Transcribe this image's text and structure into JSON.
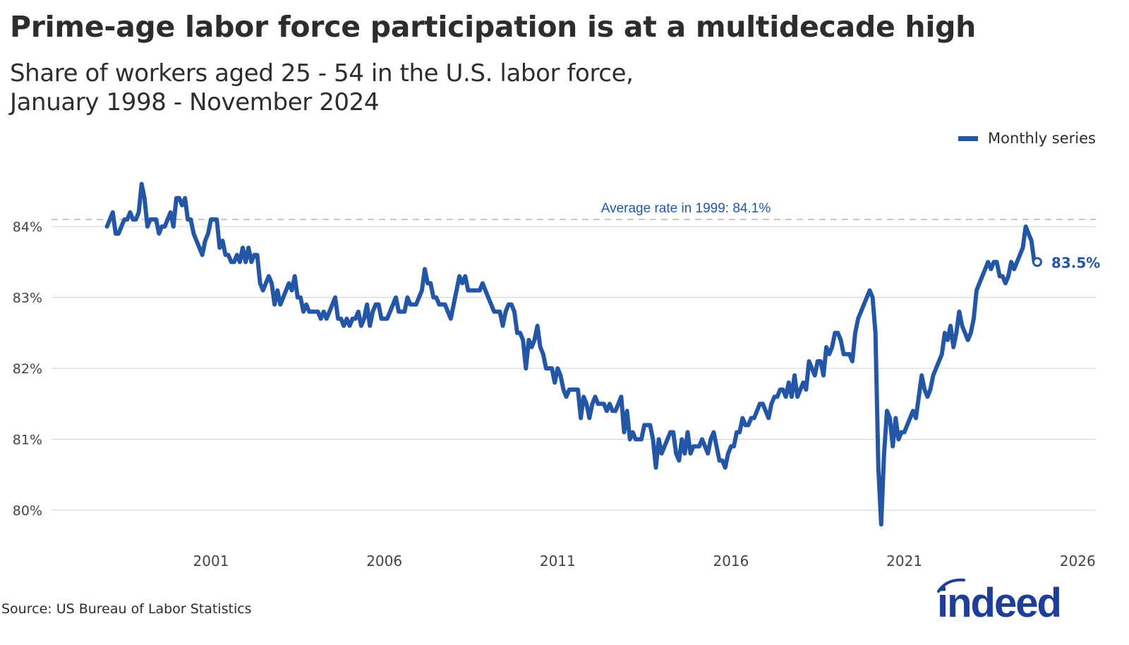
{
  "title": "Prime-age labor force participation is at a multidecade high",
  "subtitle_line1": "Share of workers aged 25 - 54 in the U.S. labor force,",
  "subtitle_line2": "January 1998 - November 2024",
  "legend_label": "Monthly series",
  "source": "Source: US Bureau of Labor Statistics",
  "logo_text": "indeed",
  "colors": {
    "series": "#2356a6",
    "grid": "#d9d9d9",
    "reference": "#c8c8c8",
    "text": "#2d2d2d"
  },
  "chart_data": {
    "type": "line",
    "title": "Prime-age labor force participation is at a multidecade high",
    "xlabel": "",
    "ylabel": "",
    "x_start": "1998-01",
    "x_end": "2024-11",
    "xlim": [
      1997.3,
      2026.5
    ],
    "ylim": [
      79.55,
      85.0
    ],
    "x_ticks": [
      2001,
      2006,
      2011,
      2016,
      2021,
      2026
    ],
    "x_tick_labels": [
      "2001",
      "2006",
      "2011",
      "2016",
      "2021",
      "2026"
    ],
    "y_ticks": [
      80,
      81,
      82,
      83,
      84
    ],
    "y_tick_labels": [
      "80%",
      "81%",
      "82%",
      "83%",
      "84%"
    ],
    "grid": true,
    "legend": "top-right",
    "reference_line": {
      "value": 84.1,
      "label": "Average rate in 1999: 84.1%"
    },
    "end_label": "83.5%",
    "series": [
      {
        "name": "Monthly series",
        "frequency": "monthly",
        "values": [
          84.0,
          84.1,
          84.2,
          83.9,
          83.9,
          84.0,
          84.1,
          84.1,
          84.2,
          84.1,
          84.1,
          84.2,
          84.6,
          84.4,
          84.0,
          84.1,
          84.1,
          84.1,
          83.9,
          84.0,
          84.0,
          84.1,
          84.2,
          84.0,
          84.4,
          84.4,
          84.3,
          84.4,
          84.1,
          84.1,
          83.9,
          83.8,
          83.7,
          83.6,
          83.8,
          83.9,
          84.1,
          84.1,
          84.1,
          83.7,
          83.8,
          83.6,
          83.6,
          83.5,
          83.5,
          83.6,
          83.5,
          83.7,
          83.5,
          83.7,
          83.5,
          83.6,
          83.6,
          83.2,
          83.1,
          83.2,
          83.3,
          83.2,
          82.9,
          83.1,
          82.9,
          83.0,
          83.1,
          83.2,
          83.1,
          83.3,
          83.0,
          83.0,
          82.8,
          82.9,
          82.8,
          82.8,
          82.8,
          82.8,
          82.7,
          82.8,
          82.7,
          82.8,
          82.9,
          83.0,
          82.7,
          82.7,
          82.6,
          82.7,
          82.6,
          82.7,
          82.7,
          82.8,
          82.6,
          82.7,
          82.9,
          82.6,
          82.8,
          82.9,
          82.9,
          82.7,
          82.7,
          82.7,
          82.8,
          82.9,
          83.0,
          82.8,
          82.8,
          82.8,
          83.0,
          82.9,
          82.9,
          82.9,
          83.0,
          83.1,
          83.4,
          83.2,
          83.2,
          83.0,
          83.0,
          82.9,
          82.9,
          82.9,
          82.8,
          82.7,
          82.9,
          83.1,
          83.3,
          83.2,
          83.3,
          83.1,
          83.1,
          83.1,
          83.1,
          83.1,
          83.2,
          83.1,
          83.0,
          82.9,
          82.8,
          82.8,
          82.8,
          82.6,
          82.8,
          82.9,
          82.9,
          82.8,
          82.5,
          82.5,
          82.4,
          82.0,
          82.4,
          82.3,
          82.4,
          82.6,
          82.3,
          82.2,
          82.0,
          82.0,
          82.0,
          81.8,
          82.0,
          81.9,
          81.7,
          81.6,
          81.7,
          81.7,
          81.7,
          81.7,
          81.3,
          81.6,
          81.5,
          81.3,
          81.5,
          81.6,
          81.5,
          81.5,
          81.5,
          81.4,
          81.5,
          81.4,
          81.4,
          81.5,
          81.6,
          81.1,
          81.4,
          81.0,
          81.1,
          81.0,
          81.0,
          81.0,
          81.2,
          81.2,
          81.2,
          81.0,
          80.6,
          81.0,
          80.8,
          80.9,
          81.0,
          81.1,
          81.1,
          80.8,
          80.7,
          81.0,
          80.8,
          81.1,
          80.8,
          80.9,
          80.9,
          80.9,
          81.0,
          80.9,
          80.8,
          81.0,
          81.1,
          80.9,
          80.7,
          80.7,
          80.6,
          80.8,
          80.9,
          80.9,
          81.1,
          81.1,
          81.3,
          81.2,
          81.2,
          81.3,
          81.3,
          81.4,
          81.5,
          81.5,
          81.4,
          81.3,
          81.5,
          81.6,
          81.6,
          81.7,
          81.7,
          81.6,
          81.8,
          81.6,
          81.9,
          81.6,
          81.7,
          81.8,
          81.7,
          82.1,
          82.0,
          81.9,
          82.1,
          82.1,
          81.9,
          82.3,
          82.2,
          82.3,
          82.5,
          82.5,
          82.4,
          82.2,
          82.2,
          82.2,
          82.1,
          82.5,
          82.7,
          82.8,
          82.9,
          83.0,
          83.1,
          83.0,
          82.5,
          80.6,
          79.8,
          80.8,
          81.4,
          81.3,
          80.9,
          81.3,
          81.0,
          81.1,
          81.1,
          81.2,
          81.3,
          81.4,
          81.3,
          81.6,
          81.9,
          81.7,
          81.6,
          81.7,
          81.9,
          82.0,
          82.1,
          82.2,
          82.5,
          82.4,
          82.6,
          82.3,
          82.5,
          82.8,
          82.6,
          82.5,
          82.4,
          82.5,
          82.7,
          83.1,
          83.2,
          83.3,
          83.4,
          83.5,
          83.4,
          83.5,
          83.5,
          83.3,
          83.3,
          83.2,
          83.3,
          83.5,
          83.4,
          83.5,
          83.6,
          83.7,
          84.0,
          83.9,
          83.8,
          83.5,
          83.5
        ]
      }
    ]
  }
}
